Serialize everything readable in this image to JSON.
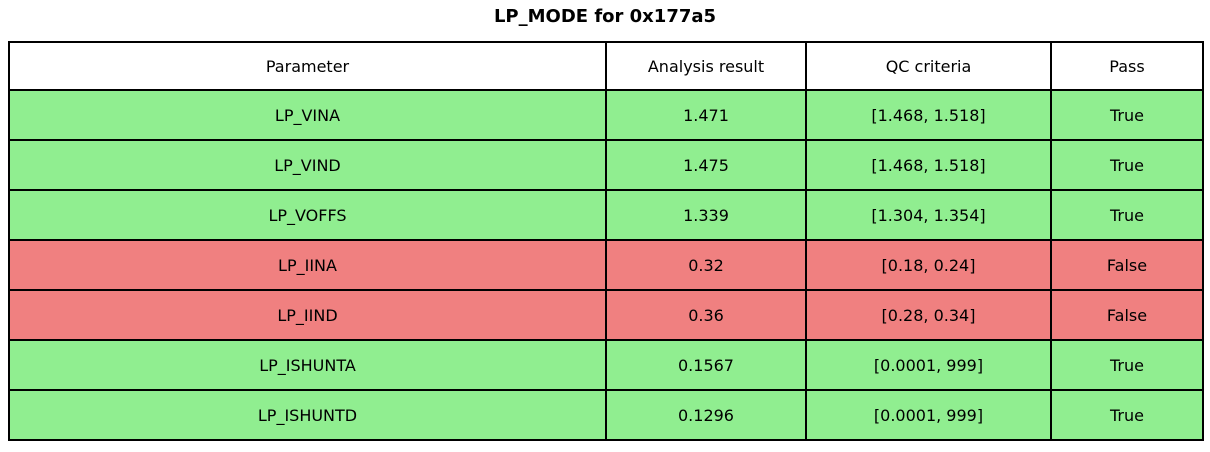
{
  "title": "LP_MODE for 0x177a5",
  "colors": {
    "pass_row": "#90ee90",
    "fail_row": "#f08080",
    "header_bg": "#ffffff",
    "border": "#000000",
    "text": "#000000"
  },
  "chart_data": {
    "type": "table",
    "title": "LP_MODE for 0x177a5",
    "columns": [
      "Parameter",
      "Analysis result",
      "QC criteria",
      "Pass"
    ],
    "rows": [
      [
        "LP_VINA",
        "1.471",
        "[1.468, 1.518]",
        "True"
      ],
      [
        "LP_VIND",
        "1.475",
        "[1.468, 1.518]",
        "True"
      ],
      [
        "LP_VOFFS",
        "1.339",
        "[1.304, 1.354]",
        "True"
      ],
      [
        "LP_IINA",
        "0.32",
        "[0.18, 0.24]",
        "False"
      ],
      [
        "LP_IIND",
        "0.36",
        "[0.28, 0.34]",
        "False"
      ],
      [
        "LP_ISHUNTA",
        "0.1567",
        "[0.0001, 999]",
        "True"
      ],
      [
        "LP_ISHUNTD",
        "0.1296",
        "[0.0001, 999]",
        "True"
      ]
    ],
    "row_status": [
      "pass",
      "pass",
      "pass",
      "fail",
      "fail",
      "pass",
      "pass"
    ],
    "layout": {
      "grid": "full-borders",
      "header_background": "white",
      "pass_rows_color_name": "light-green",
      "fail_rows_color_name": "light-coral"
    }
  }
}
